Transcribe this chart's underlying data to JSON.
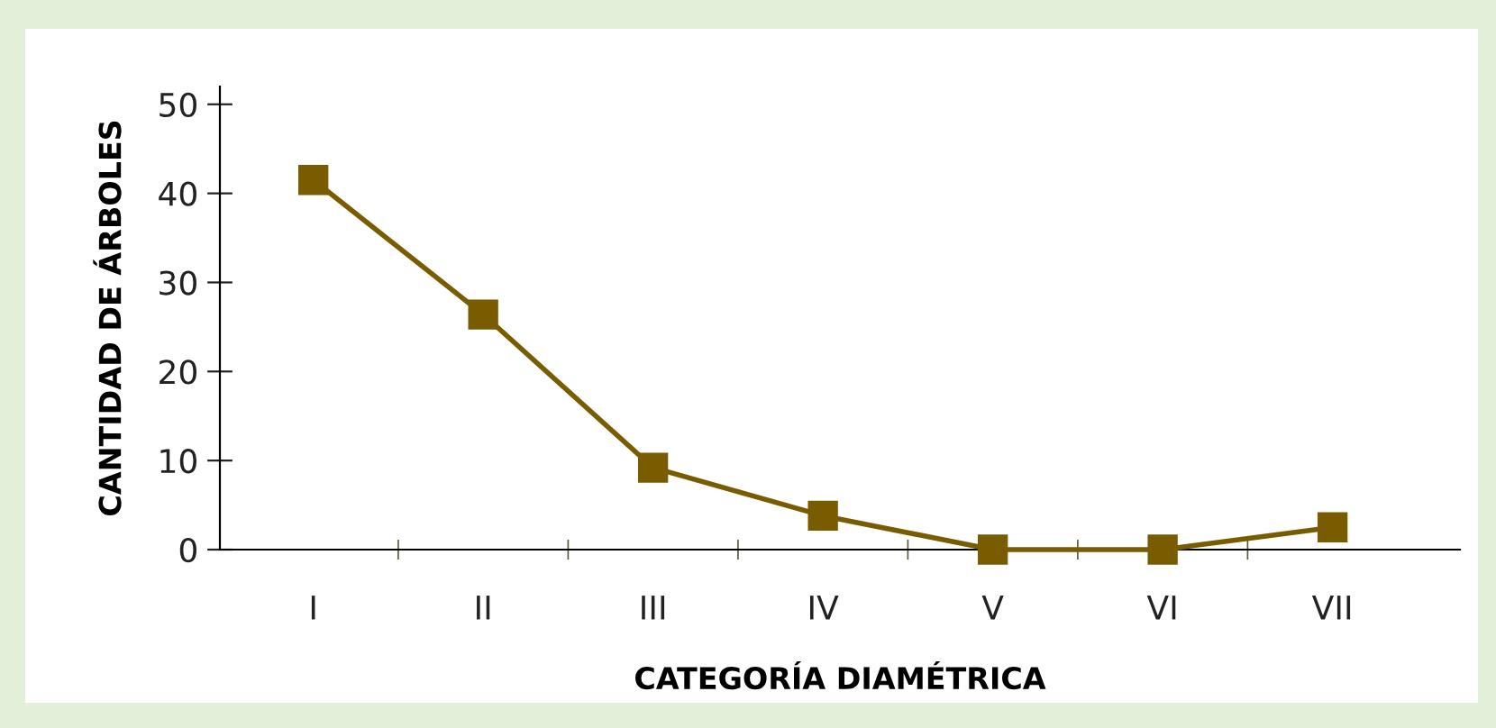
{
  "chart_data": {
    "type": "line",
    "xlabel": "CATEGORÍA DIAMÉTRICA",
    "ylabel": "CANTIDAD DE ÁRBOLES",
    "categories": [
      "I",
      "II",
      "III",
      "IV",
      "V",
      "VI",
      "VII"
    ],
    "series": [
      {
        "color": "#7a5c00",
        "values": [
          41.5,
          26.4,
          9.2,
          3.8,
          0,
          0,
          2.5
        ]
      }
    ],
    "ylim": [
      0,
      52
    ],
    "yticks": [
      0,
      10,
      20,
      30,
      40,
      50
    ],
    "marker": "square",
    "line_style": "solid",
    "grid": false,
    "legend": false
  }
}
